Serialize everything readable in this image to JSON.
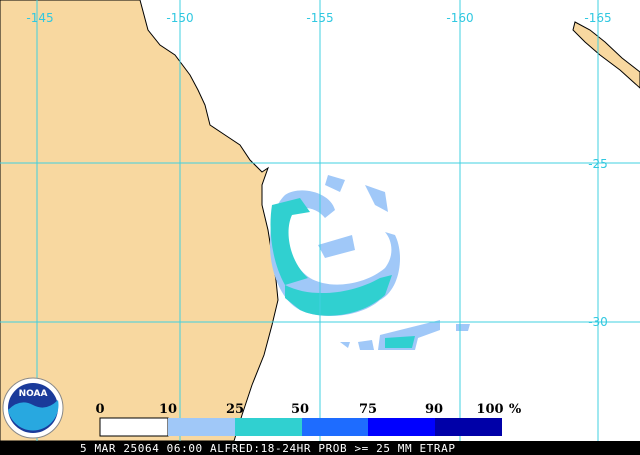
{
  "map": {
    "lon_labels": [
      "-145",
      "-150",
      "-155",
      "-160",
      "-165"
    ],
    "lat_labels": [
      "-25",
      "-30"
    ],
    "logo": "NOAA",
    "legend": {
      "labels": [
        "0",
        "10",
        "25",
        "50",
        "75",
        "90",
        "100"
      ],
      "unit": "%"
    },
    "footer": "5 MAR 25064 06:00 ALFRED:18-24HR PROB >= 25 MM ETRAP"
  }
}
